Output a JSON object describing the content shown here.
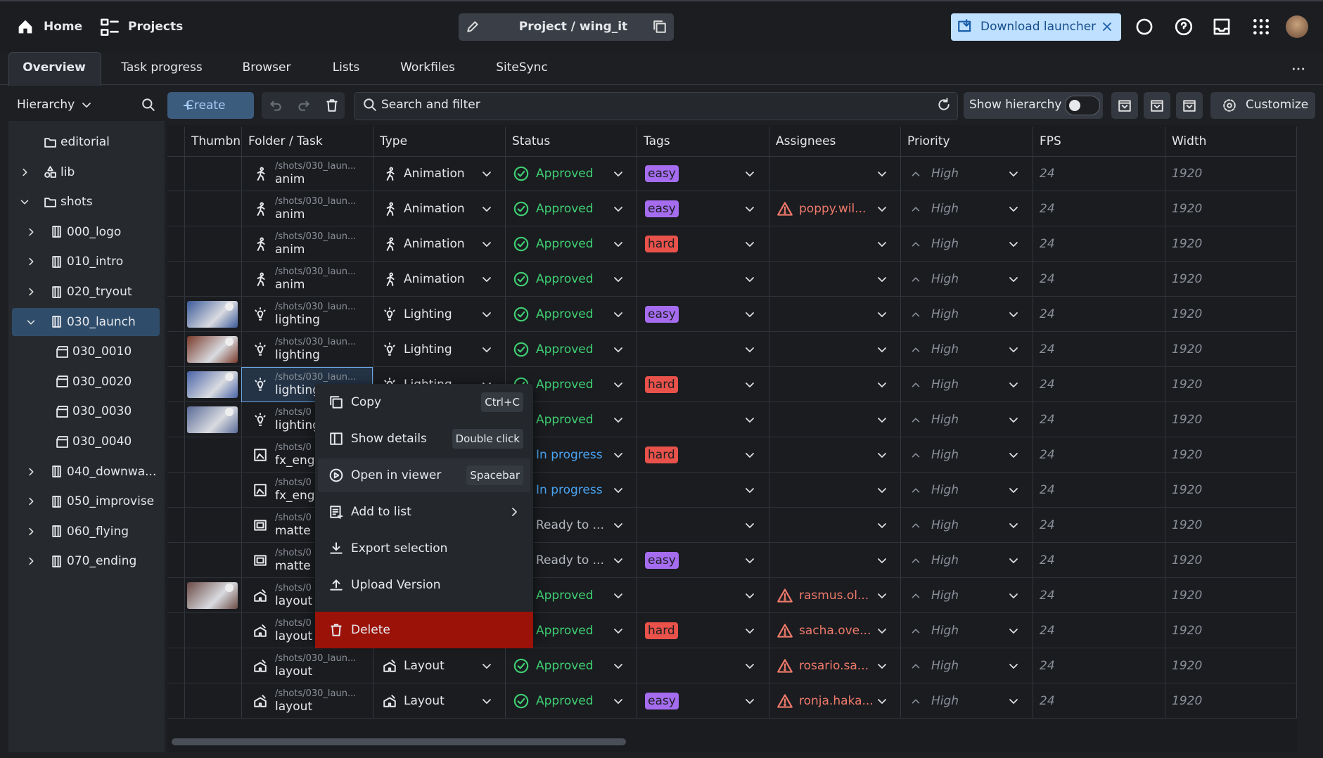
{
  "nav": {
    "home": "Home",
    "projects": "Projects",
    "project": "Project / wing_it",
    "download": "Download launcher"
  },
  "tabs": [
    "Overview",
    "Task progress",
    "Browser",
    "Lists",
    "Workfiles",
    "SiteSync"
  ],
  "toolbar": {
    "hierarchy": "Hierarchy",
    "create": "Create",
    "search": "Search and filter",
    "show_hierarchy": "Show hierarchy",
    "customize": "Customize"
  },
  "tree": [
    {
      "label": "editorial",
      "kind": "folder"
    },
    {
      "label": "lib",
      "kind": "asset",
      "children": []
    },
    {
      "label": "shots",
      "kind": "folder",
      "children": [
        {
          "label": "000_logo",
          "kind": "sequence",
          "children": []
        },
        {
          "label": "010_intro",
          "kind": "sequence",
          "children": []
        },
        {
          "label": "020_tryout",
          "kind": "sequence",
          "children": []
        },
        {
          "label": "030_launch",
          "kind": "sequence",
          "selected": true,
          "children": [
            {
              "label": "030_0010",
              "kind": "shot"
            },
            {
              "label": "030_0020",
              "kind": "shot"
            },
            {
              "label": "030_0030",
              "kind": "shot"
            },
            {
              "label": "030_0040",
              "kind": "shot"
            }
          ]
        },
        {
          "label": "040_downwa...",
          "kind": "sequence",
          "children": []
        },
        {
          "label": "050_improvise",
          "kind": "sequence",
          "children": []
        },
        {
          "label": "060_flying",
          "kind": "sequence",
          "children": []
        },
        {
          "label": "070_ending",
          "kind": "sequence",
          "children": []
        }
      ]
    }
  ],
  "table": {
    "columns": [
      "Thumbn",
      "Folder / Task",
      "Type",
      "Status",
      "Tags",
      "Assignees",
      "Priority",
      "FPS",
      "Width"
    ],
    "rows": [
      {
        "path": "/shots/030_laun...",
        "task": "anim",
        "task_icon": "run",
        "type": "Animation",
        "status": "Approved",
        "status_color": "#3fcf72",
        "tag": "easy",
        "tag_color": "#a56cf0",
        "assignee": null,
        "priority": "High",
        "fps": 24,
        "width": 1920
      },
      {
        "path": "/shots/030_laun...",
        "task": "anim",
        "task_icon": "run",
        "type": "Animation",
        "status": "Approved",
        "status_color": "#3fcf72",
        "tag": "easy",
        "tag_color": "#a56cf0",
        "assignee": "poppy.wil...",
        "priority": "High",
        "fps": 24,
        "width": 1920
      },
      {
        "path": "/shots/030_laun...",
        "task": "anim",
        "task_icon": "run",
        "type": "Animation",
        "status": "Approved",
        "status_color": "#3fcf72",
        "tag": "hard",
        "tag_color": "#e8524a",
        "assignee": null,
        "priority": "High",
        "fps": 24,
        "width": 1920
      },
      {
        "path": "/shots/030_laun...",
        "task": "anim",
        "task_icon": "run",
        "type": "Animation",
        "status": "Approved",
        "status_color": "#3fcf72",
        "tag": null,
        "assignee": null,
        "priority": "High",
        "fps": 24,
        "width": 1920
      },
      {
        "path": "/shots/030_laun...",
        "task": "lighting",
        "task_icon": "bulb",
        "thumbnail": "#3b5a9a",
        "type": "Lighting",
        "status": "Approved",
        "status_color": "#3fcf72",
        "tag": "easy",
        "tag_color": "#a56cf0",
        "assignee": null,
        "priority": "High",
        "fps": 24,
        "width": 1920
      },
      {
        "path": "/shots/030_laun...",
        "task": "lighting",
        "task_icon": "bulb",
        "thumbnail": "#7a3a2a",
        "type": "Lighting",
        "status": "Approved",
        "status_color": "#3fcf72",
        "tag": null,
        "assignee": null,
        "priority": "High",
        "fps": 24,
        "width": 1920
      },
      {
        "path": "/shots/030_laun...",
        "task": "lighting",
        "task_icon": "bulb",
        "thumbnail": "#4a64a8",
        "selected": true,
        "type": "Lighting",
        "status": "Approved",
        "status_color": "#3fcf72",
        "tag": "hard",
        "tag_color": "#e8524a",
        "assignee": null,
        "priority": "High",
        "fps": 24,
        "width": 1920
      },
      {
        "path": "/shots/0",
        "task": "lighting",
        "task_icon": "bulb",
        "thumbnail": "#5a6a98",
        "type": null,
        "status": "Approved",
        "status_color": "#3fcf72",
        "tag": null,
        "assignee": null,
        "priority": "High",
        "fps": 24,
        "width": 1920
      },
      {
        "path": "/shots/0",
        "task": "fx_eng",
        "task_icon": "image",
        "type": null,
        "status": "In progress",
        "status_color": "#4aa3f0",
        "tag": "hard",
        "tag_color": "#e8524a",
        "assignee": null,
        "priority": "High",
        "fps": 24,
        "width": 1920
      },
      {
        "path": "/shots/0",
        "task": "fx_eng",
        "task_icon": "image",
        "type": null,
        "status": "In progress",
        "status_color": "#4aa3f0",
        "tag": null,
        "assignee": null,
        "priority": "High",
        "fps": 24,
        "width": 1920
      },
      {
        "path": "/shots/0",
        "task": "matte",
        "task_icon": "matte",
        "type": null,
        "status": "Ready to ...",
        "status_color": "#b4b8bf",
        "tag": null,
        "assignee": null,
        "priority": "High",
        "fps": 24,
        "width": 1920
      },
      {
        "path": "/shots/0",
        "task": "matte",
        "task_icon": "matte",
        "type": null,
        "status": "Ready to ...",
        "status_color": "#b4b8bf",
        "tag": "easy",
        "tag_color": "#a56cf0",
        "assignee": null,
        "priority": "High",
        "fps": 24,
        "width": 1920
      },
      {
        "path": "/shots/0",
        "task": "layout",
        "task_icon": "layout",
        "thumbnail": "#6a4a44",
        "type": null,
        "status": "Approved",
        "status_color": "#3fcf72",
        "tag": null,
        "assignee": "rasmus.ol...",
        "priority": "High",
        "fps": 24,
        "width": 1920
      },
      {
        "path": "/shots/0",
        "task": "layout",
        "task_icon": "layout",
        "type": null,
        "status": "Approved",
        "status_color": "#3fcf72",
        "tag": "hard",
        "tag_color": "#e8524a",
        "assignee": "sacha.ove...",
        "priority": "High",
        "fps": 24,
        "width": 1920
      },
      {
        "path": "/shots/030_laun...",
        "task": "layout",
        "task_icon": "layout",
        "type": "Layout",
        "status": "Approved",
        "status_color": "#3fcf72",
        "tag": null,
        "assignee": "rosario.sa...",
        "priority": "High",
        "fps": 24,
        "width": 1920
      },
      {
        "path": "/shots/030_laun...",
        "task": "layout",
        "task_icon": "layout",
        "type": "Layout",
        "status": "Approved",
        "status_color": "#3fcf72",
        "tag": "easy",
        "tag_color": "#a56cf0",
        "assignee": "ronja.haka...",
        "priority": "High",
        "fps": 24,
        "width": 1920
      }
    ]
  },
  "context_menu": [
    {
      "label": "Copy",
      "shortcut": "Ctrl+C",
      "icon": "copy"
    },
    {
      "label": "Show details",
      "shortcut": "Double click",
      "icon": "panel"
    },
    {
      "label": "Open in viewer",
      "shortcut": "Spacebar",
      "icon": "play"
    },
    {
      "label": "Add to list",
      "icon": "list",
      "submenu": true
    },
    {
      "label": "Export selection",
      "icon": "down"
    },
    {
      "label": "Upload Version",
      "icon": "up"
    },
    {
      "label": "Delete",
      "icon": "trash",
      "danger": true
    }
  ]
}
